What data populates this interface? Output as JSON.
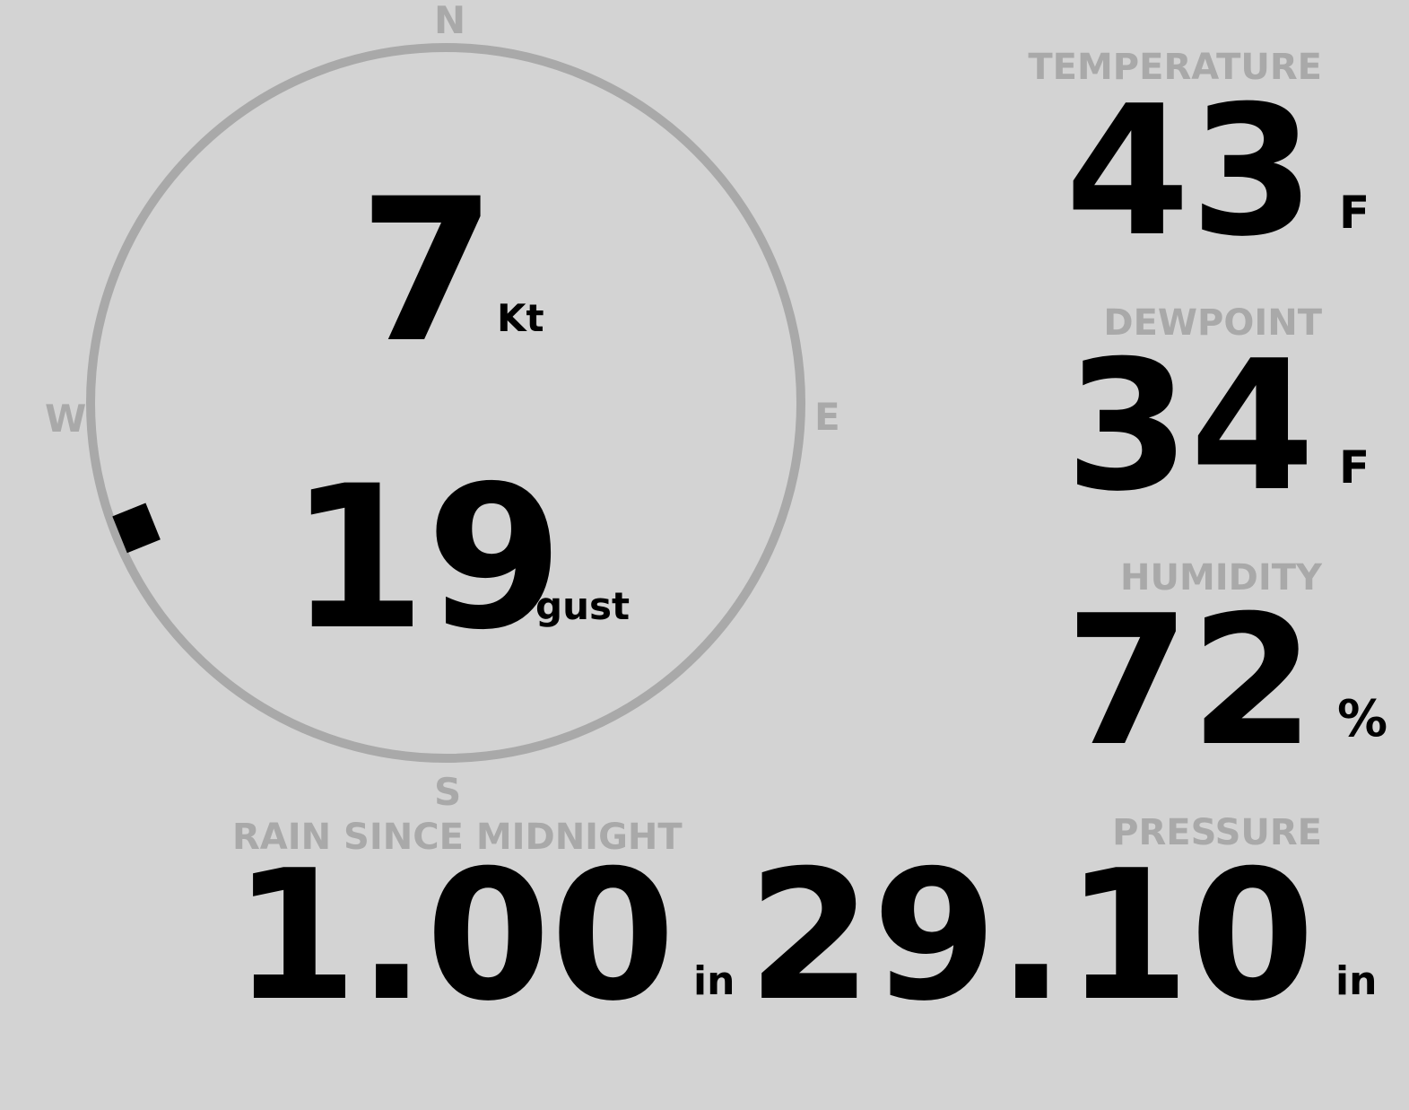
{
  "wind": {
    "speed": "7",
    "speed_unit": "Kt",
    "gust": "19",
    "gust_label": "gust",
    "direction_deg": 248,
    "compass": {
      "n": "N",
      "e": "E",
      "s": "S",
      "w": "W"
    }
  },
  "temperature": {
    "label": "TEMPERATURE",
    "value": "43",
    "unit": "F"
  },
  "dewpoint": {
    "label": "DEWPOINT",
    "value": "34",
    "unit": "F"
  },
  "humidity": {
    "label": "HUMIDITY",
    "value": "72",
    "unit": "%"
  },
  "rain": {
    "label": "RAIN SINCE MIDNIGHT",
    "value": "1.00",
    "unit": "in"
  },
  "pressure": {
    "label": "PRESSURE",
    "value": "29.10",
    "unit": "in"
  },
  "colors": {
    "background": "#d3d3d3",
    "label": "#a9a9a9",
    "value": "#000000"
  }
}
